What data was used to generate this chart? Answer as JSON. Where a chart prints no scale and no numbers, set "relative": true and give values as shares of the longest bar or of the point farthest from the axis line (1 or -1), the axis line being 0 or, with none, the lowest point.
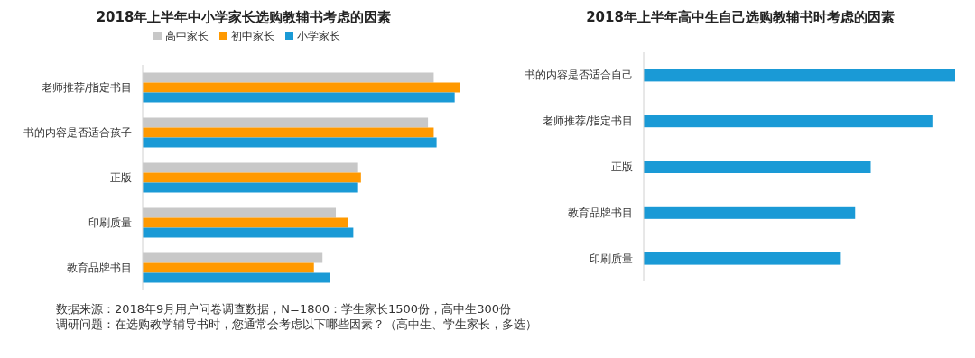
{
  "chart_data": [
    {
      "type": "bar",
      "orientation": "horizontal",
      "relative": true,
      "legend": "top",
      "title": "2018年上半年中小学家长选购教辅书考虑的因素",
      "categories": [
        "老师推荐/指定书目",
        "书的内容是否适合孩子",
        "正版",
        "印刷质量",
        "教育品牌书目"
      ],
      "series": [
        {
          "name": "高中家长",
          "color": "#c8c8c8",
          "values": [
            0.916,
            0.898,
            0.678,
            0.608,
            0.566
          ]
        },
        {
          "name": "初中家长",
          "color": "#ff9900",
          "values": [
            1,
            0.916,
            0.687,
            0.645,
            0.539
          ]
        },
        {
          "name": "小学家长",
          "color": "#1a9ad6",
          "values": [
            0.982,
            0.925,
            0.678,
            0.663,
            0.59
          ]
        }
      ],
      "annotations": [
        "数据来源：2018年9月用户问卷调查数据，N=1800：学生家长1500份，高中生300份",
        "调研问题：在选购教学辅导书时，您通常会考虑以下哪些因素？（高中生、学生家长，多选）"
      ]
    },
    {
      "type": "bar",
      "orientation": "horizontal",
      "relative": true,
      "title": "2018年上半年高中生自己选购教辅书时考虑的因素",
      "categories": [
        "书的内容是否适合自己",
        "老师推荐/指定书目",
        "正版",
        "教育品牌书目",
        "印刷质量"
      ],
      "series": [
        {
          "color": "#1a9ad6",
          "values": [
            1,
            0.927,
            0.729,
            0.679,
            0.633
          ]
        }
      ]
    }
  ]
}
